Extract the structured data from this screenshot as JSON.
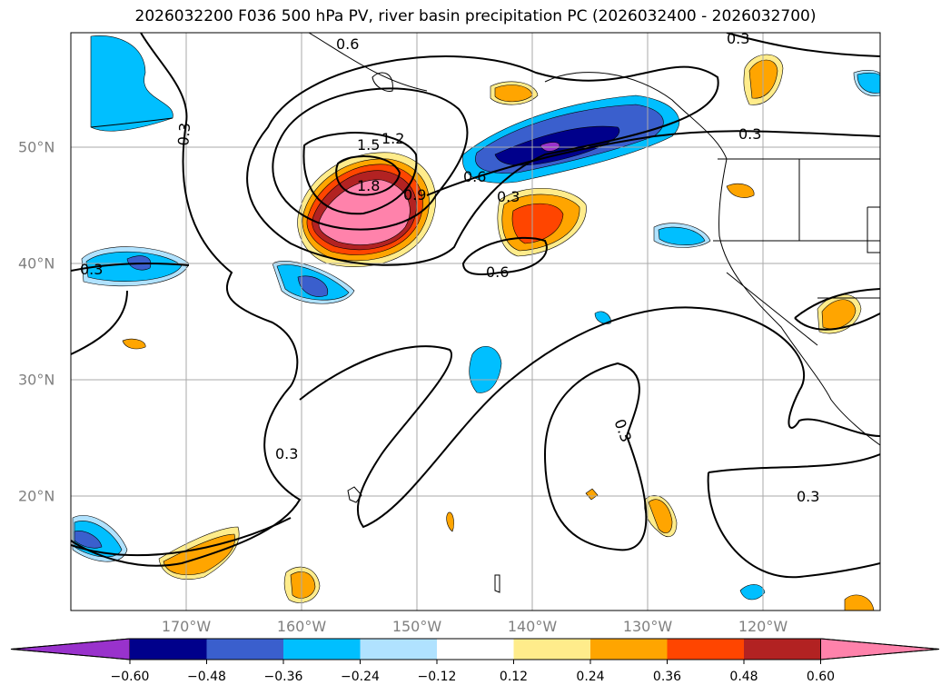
{
  "title": "2026032200 F036 500 hPa PV, river basin precipitation PC (2026032400 - 2026032700)",
  "map": {
    "lon_range": [
      "180W",
      "110W"
    ],
    "lat_range": [
      "10N",
      "60N"
    ]
  },
  "lon_labels": [
    "170°W",
    "160°W",
    "150°W",
    "140°W",
    "130°W",
    "120°W"
  ],
  "lat_labels": [
    "50°N",
    "40°N",
    "30°N",
    "20°N"
  ],
  "contour_labels": [
    "0.6",
    "0.3",
    "0.3",
    "1.2",
    "1.5",
    "1.8",
    "0.9",
    "0.6",
    "0.3",
    "0.3",
    "0.6",
    "0.3",
    "0.3",
    "0.3",
    "0.3"
  ],
  "colorbar": {
    "colors": [
      "#9932CC",
      "#00008B",
      "#3A5FCD",
      "#00BFFF",
      "#B0E2FF",
      "#FFFFFF",
      "#FFEC8B",
      "#FFA500",
      "#FF4500",
      "#B22222",
      "#FF82AB"
    ],
    "ticks": [
      "−0.60",
      "−0.48",
      "−0.36",
      "−0.24",
      "−0.12",
      "0.12",
      "0.24",
      "0.36",
      "0.48",
      "0.60"
    ]
  }
}
